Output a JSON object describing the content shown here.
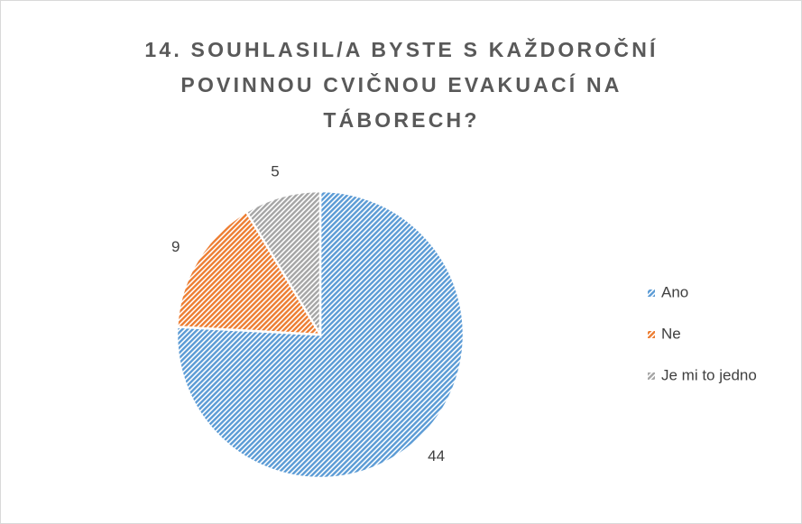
{
  "chart_data": {
    "type": "pie",
    "title": "14. SOUHLASIL/A BYSTE S KAŽDOROČNÍ POVINNOU CVIČNOU EVAKUACÍ NA TÁBORECH?",
    "categories": [
      "Ano",
      "Ne",
      "Je mi to jedno"
    ],
    "values": [
      44,
      9,
      5
    ],
    "colors": [
      "#5b9bd5",
      "#ed7d31",
      "#a5a5a5"
    ],
    "legend": "right"
  }
}
